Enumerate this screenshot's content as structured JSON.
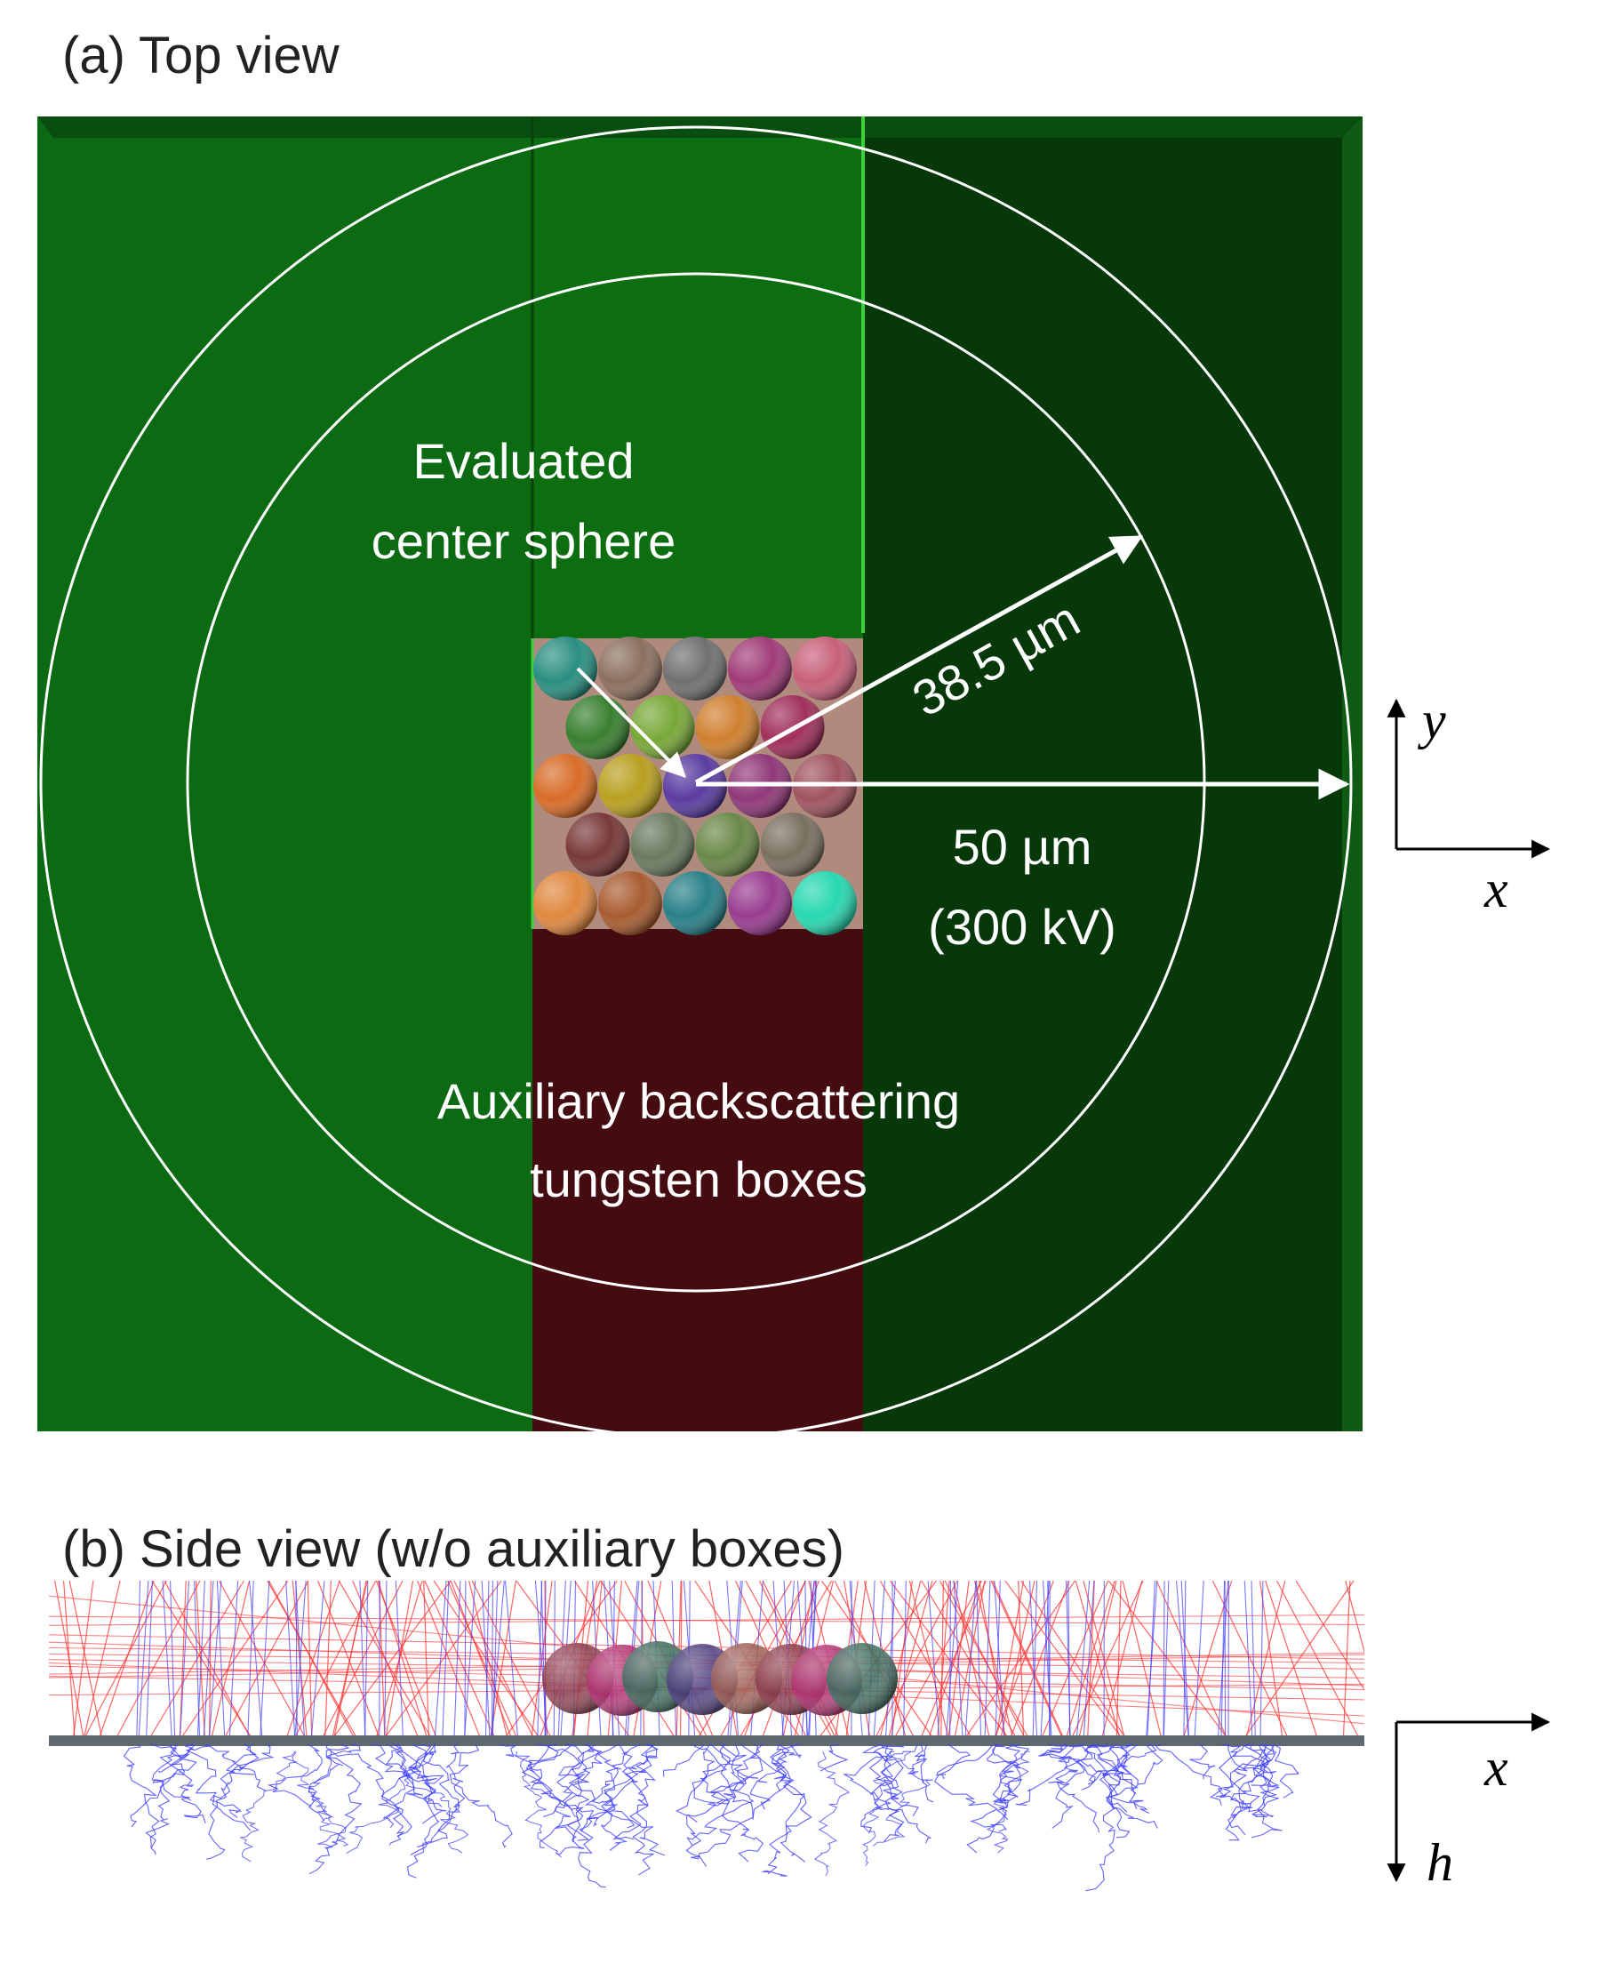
{
  "panel_a": {
    "title": "(a) Top view",
    "label_center": [
      "Evaluated",
      "center sphere"
    ],
    "label_inner_radius": "38.5 µm",
    "label_outer_radius": [
      "50 µm",
      "(300 kV)"
    ],
    "label_boxes": [
      "Auxiliary backscattering",
      "tungsten boxes"
    ],
    "axis_y": "y",
    "axis_x": "x",
    "sphere_grid": {
      "rows": [
        [
          "#2a8f80",
          "#8c7060",
          "#707070",
          "#a03c78",
          "#c8607a"
        ],
        [
          "#388030",
          "#78a838",
          "#d08030",
          "#a0305a"
        ],
        [
          "#d86c28",
          "#b8a020",
          "#5a3ca0",
          "#903878",
          "#a05460"
        ],
        [
          "#783838",
          "#6a7a60",
          "#6a8848",
          "#7a7060"
        ],
        [
          "#e08840",
          "#a85c30",
          "#288088",
          "#983c90",
          "#28d8b0"
        ]
      ]
    },
    "colors": {
      "left_region": "#0c6a12",
      "upper_center": "#0c6e10",
      "right_region": "#06380a",
      "tungsten_box": "#440c10",
      "sphere_bg": "#b08a7c",
      "accent_edge": "#3cd03c"
    }
  },
  "panel_b": {
    "title": "(b) Side view (w/o auxiliary boxes)",
    "axis_x": "x",
    "axis_h": "h",
    "colors": {
      "primary_tracks": "#ff3030",
      "secondary_tracks": "#3c3cff",
      "substrate": "#5f6a70"
    }
  }
}
